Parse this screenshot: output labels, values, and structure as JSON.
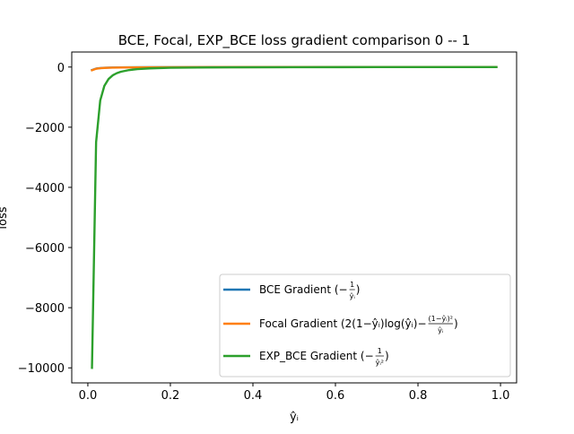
{
  "chart_data": {
    "type": "line",
    "title": "BCE, Focal, EXP_BCE loss gradient comparison 0 -- 1",
    "xlabel": "ŷᵢ",
    "ylabel": "loss",
    "xlim": [
      -0.039,
      1.039
    ],
    "ylim": [
      -10500,
      500
    ],
    "xticks": [
      0.0,
      0.2,
      0.4,
      0.6,
      0.8,
      1.0
    ],
    "xtick_labels": [
      "0.0",
      "0.2",
      "0.4",
      "0.6",
      "0.8",
      "1.0"
    ],
    "yticks": [
      0,
      -2000,
      -4000,
      -6000,
      -8000,
      -10000
    ],
    "ytick_labels": [
      "0",
      "−2000",
      "−4000",
      "−6000",
      "−8000",
      "−10000"
    ],
    "grid": false,
    "legend_position": "lower-right",
    "series": [
      {
        "name": "BCE Gradient (−1/ŷᵢ)",
        "color": "#1f77b4",
        "x": [
          0.01,
          0.02,
          0.03,
          0.04,
          0.05,
          0.06,
          0.08,
          0.1,
          0.15,
          0.2,
          0.3,
          0.5,
          0.7,
          0.99
        ],
        "y": [
          -100,
          -50,
          -33.3,
          -25,
          -20,
          -16.7,
          -12.5,
          -10,
          -6.7,
          -5,
          -3.3,
          -2,
          -1.4,
          -1
        ]
      },
      {
        "name": "Focal Gradient (2(1−ŷᵢ)log(ŷᵢ) − (1−ŷᵢ)²/ŷᵢ)",
        "color": "#ff7f0e",
        "x": [
          0.01,
          0.02,
          0.03,
          0.04,
          0.05,
          0.06,
          0.08,
          0.1,
          0.15,
          0.2,
          0.3,
          0.5,
          0.7,
          0.99
        ],
        "y": [
          -107,
          -55.7,
          -38.1,
          -29.2,
          -23.9,
          -20.0,
          -15.2,
          -12.3,
          -7.9,
          -5.8,
          -3.3,
          -1.2,
          -0.3,
          -0.0
        ]
      },
      {
        "name": "EXP_BCE Gradient (−1/ŷᵢ²)",
        "color": "#2ca02c",
        "x": [
          0.01,
          0.02,
          0.03,
          0.04,
          0.05,
          0.06,
          0.07,
          0.08,
          0.1,
          0.12,
          0.15,
          0.2,
          0.3,
          0.5,
          0.7,
          0.99
        ],
        "y": [
          -10000,
          -2500,
          -1111,
          -625,
          -400,
          -278,
          -204,
          -156,
          -100,
          -69,
          -44,
          -25,
          -11,
          -4,
          -2,
          -1
        ]
      }
    ],
    "legend": [
      {
        "main": "BCE Gradient ",
        "formula_main": "(−",
        "frac_num": "1",
        "frac_den": "ŷᵢ",
        "formula_end": ")"
      },
      {
        "main": "Focal Gradient ",
        "formula_main": "(2(1−ŷᵢ)log(ŷᵢ)−",
        "frac_num": "(1−ŷᵢ)²",
        "frac_den": "ŷᵢ",
        "formula_end": ")"
      },
      {
        "main": "EXP_BCE Gradient ",
        "formula_main": "(−",
        "frac_num": "1",
        "frac_den": "ŷᵢ²",
        "formula_end": ")"
      }
    ]
  }
}
